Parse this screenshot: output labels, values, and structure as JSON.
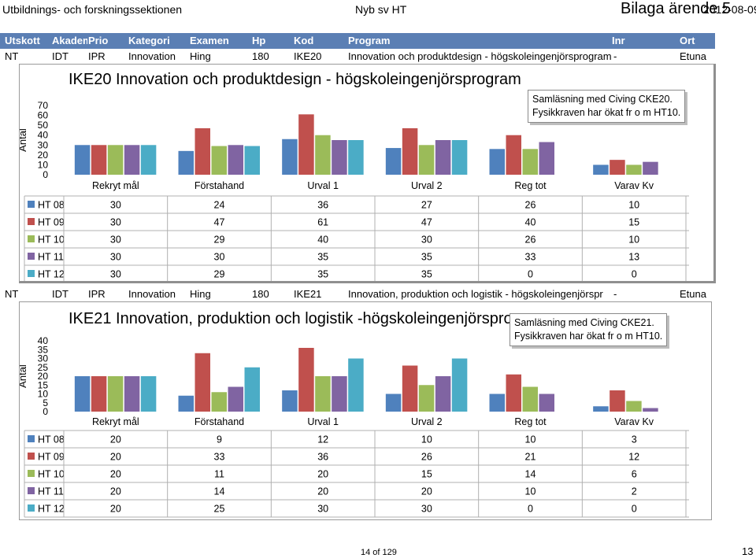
{
  "header": {
    "left": "Utbildnings- och forskningssektionen",
    "center": "Nyb sv HT",
    "bilaga": "Bilaga ärende 5",
    "date": "2012-08-09"
  },
  "columns": [
    "Utskott",
    "Akadem",
    "Prio",
    "Kategori",
    "Examen",
    "Hp",
    "Kod",
    "Program",
    "Inr",
    "Ort"
  ],
  "rows": [
    {
      "utskott": "NT",
      "akademi": "IDT",
      "prio": "IPR",
      "kategori": "Innovation",
      "examen": "Hing",
      "hp": "180",
      "kod": "IKE20",
      "program": "Innovation och produktdesign - högskoleingenjörsprogram",
      "inr": "-",
      "ort": "Etuna"
    },
    {
      "utskott": "NT",
      "akademi": "IDT",
      "prio": "IPR",
      "kategori": "Innovation",
      "examen": "Hing",
      "hp": "180",
      "kod": "IKE21",
      "program": "Innovation, produktion och logistik - högskoleingenjörspr",
      "inr": "-",
      "ort": "Etuna"
    }
  ],
  "chart_data": [
    {
      "type": "bar",
      "title": "IKE20 Innovation och produktdesign - högskoleingenjörsprogram",
      "ylabel": "Antal",
      "ylim": [
        0,
        70
      ],
      "yticks": [
        "0",
        "10",
        "20",
        "30",
        "40",
        "50",
        "60",
        "70"
      ],
      "categories": [
        "Rekryt mål",
        "Förstahand",
        "Urval 1",
        "Urval 2",
        "Reg tot",
        "Varav Kv"
      ],
      "series": [
        {
          "name": "HT 08",
          "color": "#4f81bd",
          "values": [
            30,
            24,
            36,
            27,
            26,
            10
          ],
          "labels": [
            "30",
            "24",
            "36",
            "27",
            "26",
            "10"
          ]
        },
        {
          "name": "HT 09",
          "color": "#c0504d",
          "values": [
            30,
            47,
            61,
            47,
            40,
            15
          ],
          "labels": [
            "30",
            "47",
            "61",
            "47",
            "40",
            "15"
          ]
        },
        {
          "name": "HT 10",
          "color": "#9bbb59",
          "values": [
            30,
            29,
            40,
            30,
            26,
            10
          ],
          "labels": [
            "30",
            "29",
            "40",
            "30",
            "26",
            "10"
          ]
        },
        {
          "name": "HT 11",
          "color": "#8064a2",
          "values": [
            30,
            30,
            35,
            35,
            33,
            13
          ],
          "labels": [
            "30",
            "30",
            "35",
            "35",
            "33",
            "13"
          ]
        },
        {
          "name": "HT 12",
          "color": "#4bacc6",
          "values": [
            30,
            29,
            35,
            35,
            0,
            0
          ],
          "labels": [
            "30",
            "29",
            "35",
            "35",
            "0",
            "0"
          ]
        }
      ],
      "callout": [
        "Samläsning med Civing CKE20.",
        "Fysikkraven har ökat fr o m HT10."
      ]
    },
    {
      "type": "bar",
      "title": "IKE21 Innovation, produktion och logistik -högskoleingenjörsprogram",
      "ylabel": "Antal",
      "ylim": [
        0,
        40
      ],
      "yticks": [
        "0",
        "5",
        "10",
        "15",
        "20",
        "25",
        "30",
        "35",
        "40"
      ],
      "categories": [
        "Rekryt mål",
        "Förstahand",
        "Urval 1",
        "Urval 2",
        "Reg tot",
        "Varav Kv"
      ],
      "series": [
        {
          "name": "HT 08",
          "color": "#4f81bd",
          "values": [
            20,
            9,
            12,
            10,
            10,
            3
          ],
          "labels": [
            "20",
            "9",
            "12",
            "10",
            "10",
            "3"
          ]
        },
        {
          "name": "HT 09",
          "color": "#c0504d",
          "values": [
            20,
            33,
            36,
            26,
            21,
            12
          ],
          "labels": [
            "20",
            "33",
            "36",
            "26",
            "21",
            "12"
          ]
        },
        {
          "name": "HT 10",
          "color": "#9bbb59",
          "values": [
            20,
            11,
            20,
            15,
            14,
            6
          ],
          "labels": [
            "20",
            "11",
            "20",
            "15",
            "14",
            "6"
          ]
        },
        {
          "name": "HT 11",
          "color": "#8064a2",
          "values": [
            20,
            14,
            20,
            20,
            10,
            2
          ],
          "labels": [
            "20",
            "14",
            "20",
            "20",
            "10",
            "2"
          ]
        },
        {
          "name": "HT 12",
          "color": "#4bacc6",
          "values": [
            20,
            25,
            30,
            30,
            0,
            0
          ],
          "labels": [
            "20",
            "25",
            "30",
            "30",
            "0",
            "0"
          ]
        }
      ],
      "callout": [
        "Samläsning med Civing CKE21.",
        "Fysikkraven har ökat fr o m HT10."
      ]
    }
  ],
  "footer": {
    "page": "14 of 129",
    "pageno": "13"
  }
}
